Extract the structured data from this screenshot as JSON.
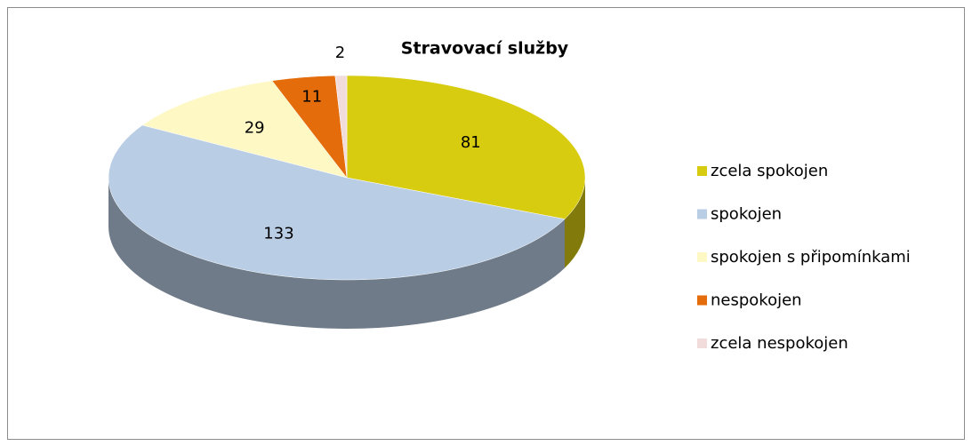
{
  "chart_data": {
    "type": "pie",
    "title": "Stravovací služby",
    "categories": [
      "zcela spokojen",
      "spokojen",
      "spokojen s připomínkami",
      "nespokojen",
      "zcela nespokojen"
    ],
    "values": [
      81,
      133,
      29,
      11,
      2
    ],
    "colors": [
      "#d8cc10",
      "#b9cde5",
      "#fdf8c4",
      "#e46c0a",
      "#f2dcdb"
    ],
    "legend": "right"
  }
}
